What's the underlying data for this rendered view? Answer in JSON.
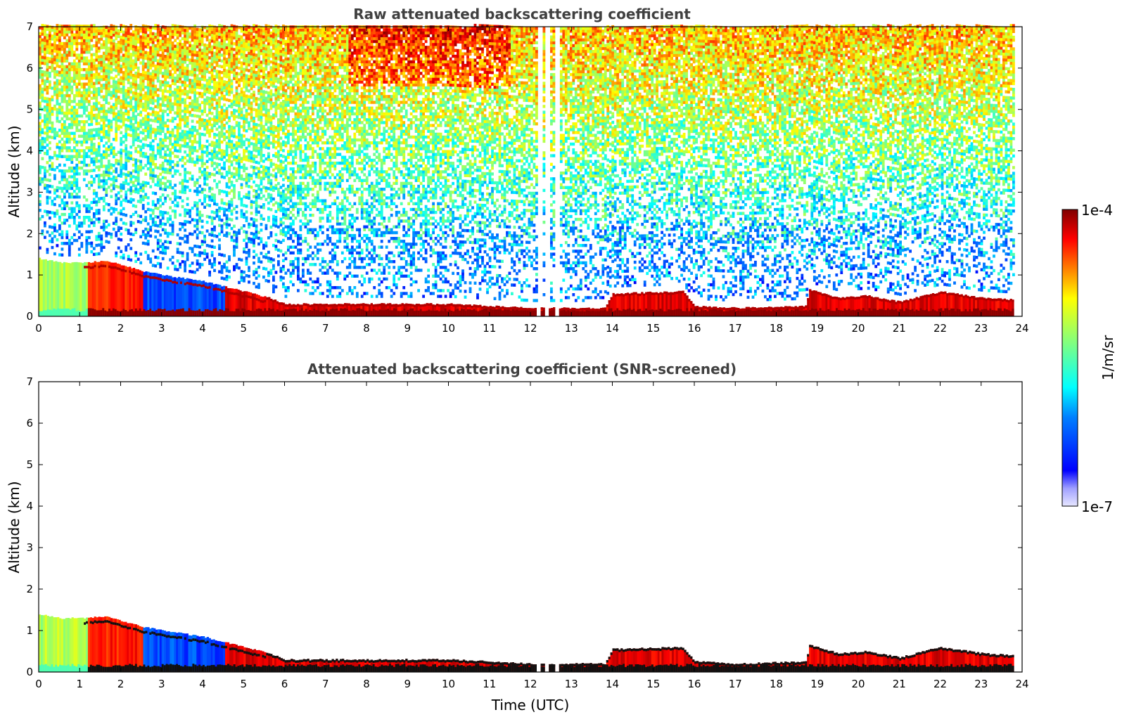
{
  "chart_data": [
    {
      "type": "heatmap",
      "title": "Raw attenuated backscattering coefficient",
      "xlabel": "",
      "ylabel": "Altitude (km)",
      "xlim": [
        0,
        24
      ],
      "ylim": [
        0,
        7
      ],
      "xticks": [
        "0",
        "1",
        "2",
        "3",
        "4",
        "5",
        "6",
        "7",
        "8",
        "9",
        "10",
        "11",
        "12",
        "13",
        "14",
        "15",
        "16",
        "17",
        "18",
        "19",
        "20",
        "21",
        "22",
        "23",
        "24"
      ],
      "yticks": [
        "0",
        "1",
        "2",
        "3",
        "4",
        "5",
        "6",
        "7"
      ],
      "data_end_time": 23.8,
      "gaps": [
        [
          12.15,
          12.25
        ],
        [
          12.35,
          12.45
        ],
        [
          12.6,
          12.7
        ]
      ],
      "boundary_layer_top_km": [
        [
          0,
          1.4
        ],
        [
          0.5,
          1.3
        ],
        [
          1.2,
          1.3
        ],
        [
          1.6,
          1.35
        ],
        [
          2.5,
          1.1
        ],
        [
          3,
          1.0
        ],
        [
          4,
          0.85
        ],
        [
          5,
          0.6
        ],
        [
          5.6,
          0.45
        ],
        [
          6,
          0.3
        ],
        [
          7,
          0.3
        ],
        [
          9,
          0.3
        ],
        [
          10,
          0.3
        ],
        [
          11,
          0.25
        ],
        [
          12,
          0.2
        ],
        [
          13.8,
          0.2
        ],
        [
          14,
          0.55
        ],
        [
          15.7,
          0.6
        ],
        [
          16,
          0.25
        ],
        [
          17,
          0.2
        ],
        [
          18.7,
          0.25
        ],
        [
          18.8,
          0.65
        ],
        [
          19.5,
          0.45
        ],
        [
          20.2,
          0.5
        ],
        [
          21,
          0.35
        ],
        [
          22,
          0.6
        ],
        [
          23,
          0.45
        ],
        [
          23.8,
          0.4
        ]
      ],
      "noise_level_above_bl": "high",
      "colorscale": "jet"
    },
    {
      "type": "heatmap",
      "title": "Attenuated backscattering coefficient (SNR-screened)",
      "xlabel": "Time (UTC)",
      "ylabel": "Altitude (km)",
      "xlim": [
        0,
        24
      ],
      "ylim": [
        0,
        7
      ],
      "xticks": [
        "0",
        "1",
        "2",
        "3",
        "4",
        "5",
        "6",
        "7",
        "8",
        "9",
        "10",
        "11",
        "12",
        "13",
        "14",
        "15",
        "16",
        "17",
        "18",
        "19",
        "20",
        "21",
        "22",
        "23",
        "24"
      ],
      "yticks": [
        "0",
        "1",
        "2",
        "3",
        "4",
        "5",
        "6",
        "7"
      ],
      "data_end_time": 23.8,
      "gaps": [
        [
          12.15,
          12.25
        ],
        [
          12.35,
          12.45
        ],
        [
          12.6,
          12.7
        ]
      ],
      "boundary_layer_top_km": [
        [
          0,
          1.4
        ],
        [
          0.5,
          1.3
        ],
        [
          1.2,
          1.3
        ],
        [
          1.6,
          1.35
        ],
        [
          2.5,
          1.1
        ],
        [
          3,
          1.0
        ],
        [
          4,
          0.85
        ],
        [
          5,
          0.6
        ],
        [
          5.6,
          0.45
        ],
        [
          6,
          0.3
        ],
        [
          7,
          0.3
        ],
        [
          9,
          0.3
        ],
        [
          10,
          0.3
        ],
        [
          11,
          0.25
        ],
        [
          12,
          0.2
        ],
        [
          13.8,
          0.2
        ],
        [
          14,
          0.55
        ],
        [
          15.7,
          0.6
        ],
        [
          16,
          0.25
        ],
        [
          17,
          0.2
        ],
        [
          18.7,
          0.25
        ],
        [
          18.8,
          0.65
        ],
        [
          19.5,
          0.45
        ],
        [
          20.2,
          0.5
        ],
        [
          21,
          0.35
        ],
        [
          22,
          0.6
        ],
        [
          23,
          0.45
        ],
        [
          23.8,
          0.4
        ]
      ],
      "noise_level_above_bl": "none",
      "colorscale": "jet"
    }
  ],
  "colorbar": {
    "max_label": "1e-4",
    "min_label": "1e-7",
    "unit": "1/m/sr",
    "colors": [
      "#7f0000",
      "#ff0000",
      "#ff8000",
      "#ffff00",
      "#80ff80",
      "#00ffff",
      "#0080ff",
      "#0000ff",
      "#e6e6ff"
    ]
  }
}
